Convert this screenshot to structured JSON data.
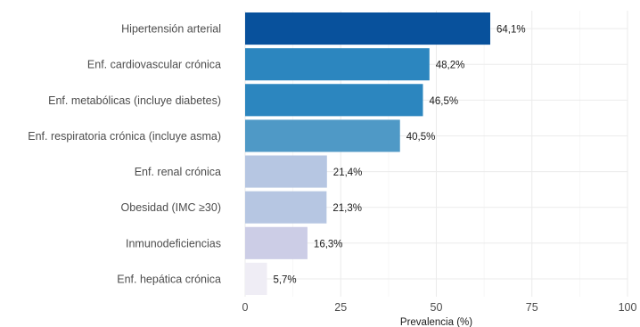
{
  "chart_data": {
    "type": "bar",
    "orientation": "horizontal",
    "categories": [
      "Hipertensión arterial",
      "Enf. cardiovascular crónica",
      "Enf. metabólicas (incluye diabetes)",
      "Enf. respiratoria crónica (incluye asma)",
      "Enf. renal crónica",
      "Obesidad (IMC ≥30)",
      "Inmunodeficiencias",
      "Enf. hepática crónica"
    ],
    "values": [
      64.1,
      48.2,
      46.5,
      40.5,
      21.4,
      21.3,
      16.3,
      5.7
    ],
    "value_labels": [
      "64,1%",
      "48,2%",
      "46,5%",
      "40,5%",
      "21,4%",
      "21,3%",
      "16,3%",
      "5,7%"
    ],
    "bar_colors": [
      "#08519c",
      "#2c86bf",
      "#2c86bf",
      "#4f99c6",
      "#b6c6e2",
      "#b6c6e2",
      "#cccde6",
      "#efedf5"
    ],
    "xlabel": "Prevalencia (%)",
    "ylabel": "",
    "title": "",
    "xlim": [
      0,
      100
    ],
    "xticks": [
      0,
      25,
      50,
      75,
      100
    ],
    "xtick_labels": [
      "0",
      "25",
      "50",
      "75",
      "100"
    ],
    "grid": true,
    "legend": "none"
  }
}
